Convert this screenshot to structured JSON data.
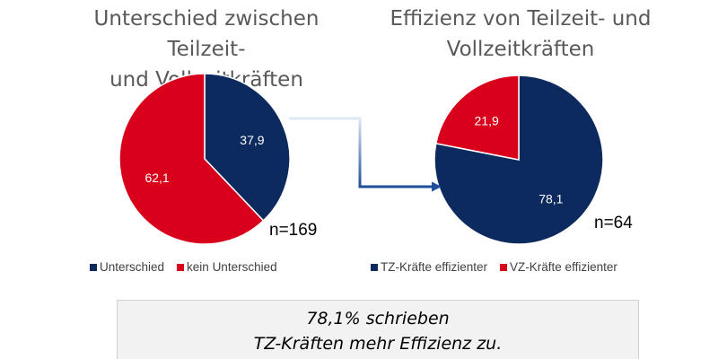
{
  "colors": {
    "navy": "#0c2a5e",
    "red": "#d9001b"
  },
  "chart_data": [
    {
      "type": "pie",
      "title_lines": [
        "Unterschied zwischen Teilzeit-",
        "und Vollzeitkräften"
      ],
      "slices": [
        {
          "label": "Unterschied",
          "value": 37.9,
          "display": "37,9",
          "color": "#0c2a5e"
        },
        {
          "label": "kein Unterschied",
          "value": 62.1,
          "display": "62,1",
          "color": "#d9001b"
        }
      ],
      "n_label": "n=169",
      "legend_position": "bottom"
    },
    {
      "type": "pie",
      "title_lines": [
        "Effizienz von Teilzeit- und",
        "Vollzeitkräften"
      ],
      "slices": [
        {
          "label": "TZ-Kräfte effizienter",
          "value": 78.1,
          "display": "78,1",
          "color": "#0c2a5e"
        },
        {
          "label": "VZ-Kräfte effizienter",
          "value": 21.9,
          "display": "21,9",
          "color": "#d9001b"
        }
      ],
      "n_label": "n=64",
      "legend_position": "bottom"
    }
  ],
  "callout": {
    "line1": "78,1% schrieben",
    "line2": "TZ-Kräften mehr Effizienz zu."
  }
}
